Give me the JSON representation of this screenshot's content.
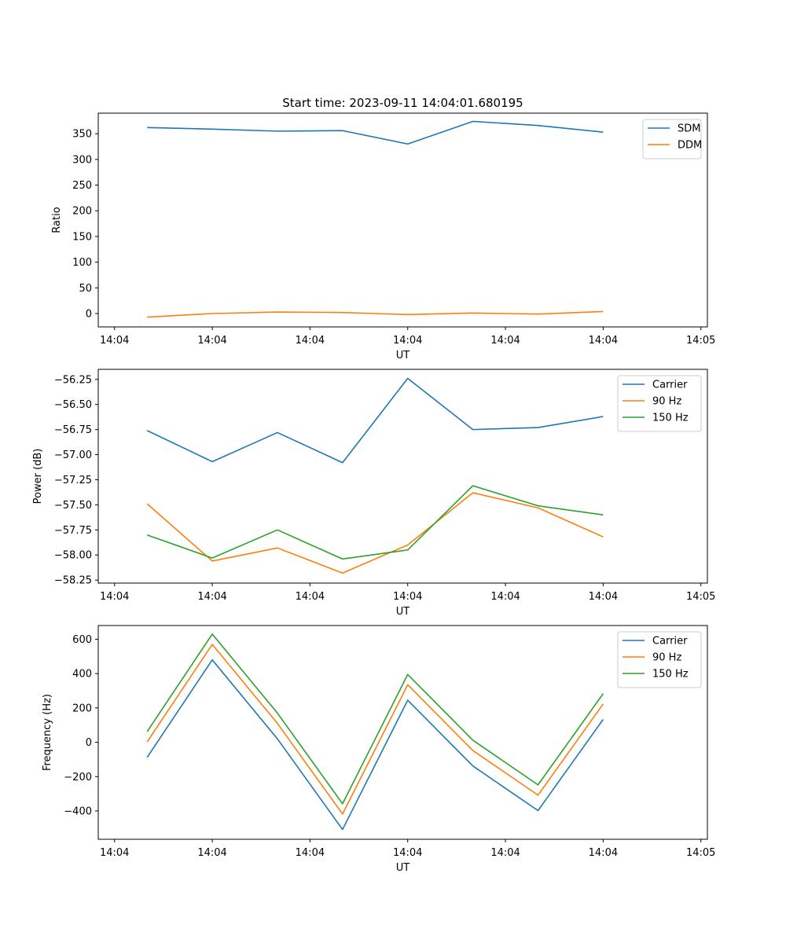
{
  "figure_title": "Start time: 2023-09-11 14:04:01.680195",
  "colors": {
    "blue": "#1f77b4",
    "orange": "#ff7f0e",
    "green": "#2ca02c"
  },
  "chart_data": [
    {
      "type": "line",
      "title": "Start time: 2023-09-11 14:04:01.680195",
      "xlabel": "UT",
      "ylabel": "Ratio",
      "x": [
        1,
        2,
        3,
        4,
        5,
        6,
        7,
        8
      ],
      "xlim": [
        0.25,
        9.6
      ],
      "x_ticks": [
        0.5,
        2,
        3.5,
        5,
        6.5,
        8,
        9.5
      ],
      "x_tick_labels": [
        "14:04",
        "14:04",
        "14:04",
        "14:04",
        "14:04",
        "14:04",
        "14:05"
      ],
      "ylim": [
        -26,
        390
      ],
      "y_ticks": [
        0,
        50,
        100,
        150,
        200,
        250,
        300,
        350
      ],
      "y_tick_labels": [
        "0",
        "50",
        "100",
        "150",
        "200",
        "250",
        "300",
        "350"
      ],
      "legend_position": "top-right",
      "series": [
        {
          "name": "SDM",
          "color": "#1f77b4",
          "values": [
            362,
            359,
            355,
            356,
            330,
            374,
            366,
            353
          ]
        },
        {
          "name": "DDM",
          "color": "#ff7f0e",
          "values": [
            -7,
            0,
            3,
            2,
            -2,
            1,
            -1,
            4
          ]
        }
      ]
    },
    {
      "type": "line",
      "xlabel": "UT",
      "ylabel": "Power (dB)",
      "x": [
        1,
        2,
        3,
        4,
        5,
        6,
        7,
        8
      ],
      "xlim": [
        0.25,
        9.6
      ],
      "x_ticks": [
        0.5,
        2,
        3.5,
        5,
        6.5,
        8,
        9.5
      ],
      "x_tick_labels": [
        "14:04",
        "14:04",
        "14:04",
        "14:04",
        "14:04",
        "14:04",
        "14:05"
      ],
      "ylim": [
        -58.28,
        -56.15
      ],
      "y_ticks": [
        -58.25,
        -58.0,
        -57.75,
        -57.5,
        -57.25,
        -57.0,
        -56.75,
        -56.5,
        -56.25
      ],
      "y_tick_labels": [
        "−58.25",
        "−58.00",
        "−57.75",
        "−57.50",
        "−57.25",
        "−57.00",
        "−56.75",
        "−56.50",
        "−56.25"
      ],
      "legend_position": "top-right",
      "series": [
        {
          "name": "Carrier",
          "color": "#1f77b4",
          "values": [
            -56.76,
            -57.07,
            -56.78,
            -57.08,
            -56.24,
            -56.75,
            -56.73,
            -56.62
          ]
        },
        {
          "name": "90 Hz",
          "color": "#ff7f0e",
          "values": [
            -57.49,
            -58.06,
            -57.93,
            -58.18,
            -57.9,
            -57.38,
            -57.53,
            -57.82
          ]
        },
        {
          "name": "150 Hz",
          "color": "#2ca02c",
          "values": [
            -57.8,
            -58.03,
            -57.75,
            -58.04,
            -57.95,
            -57.31,
            -57.51,
            -57.6
          ]
        }
      ]
    },
    {
      "type": "line",
      "xlabel": "UT",
      "ylabel": "Frequency (Hz)",
      "x": [
        1,
        2,
        3,
        4,
        5,
        6,
        7,
        8
      ],
      "xlim": [
        0.25,
        9.6
      ],
      "x_ticks": [
        0.5,
        2,
        3.5,
        5,
        6.5,
        8,
        9.5
      ],
      "x_tick_labels": [
        "14:04",
        "14:04",
        "14:04",
        "14:04",
        "14:04",
        "14:04",
        "14:05"
      ],
      "ylim": [
        -565,
        680
      ],
      "y_ticks": [
        -400,
        -200,
        0,
        200,
        400,
        600
      ],
      "y_tick_labels": [
        "−400",
        "−200",
        "0",
        "200",
        "400",
        "600"
      ],
      "legend_position": "top-right",
      "series": [
        {
          "name": "Carrier",
          "color": "#1f77b4",
          "values": [
            -88,
            480,
            20,
            -508,
            245,
            -138,
            -398,
            133
          ]
        },
        {
          "name": "90 Hz",
          "color": "#ff7f0e",
          "values": [
            2,
            570,
            110,
            -418,
            335,
            -48,
            -308,
            223
          ]
        },
        {
          "name": "150 Hz",
          "color": "#2ca02c",
          "values": [
            62,
            630,
            170,
            -358,
            395,
            12,
            -248,
            283
          ]
        }
      ]
    }
  ]
}
